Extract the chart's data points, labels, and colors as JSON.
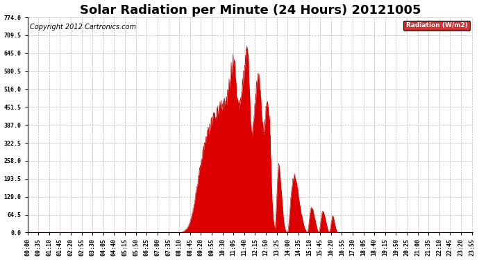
{
  "title": "Solar Radiation per Minute (24 Hours) 20121005",
  "copyright_text": "Copyright 2012 Cartronics.com",
  "legend_label": "Radiation (W/m2)",
  "legend_bg": "#cc0000",
  "legend_text_color": "#ffffff",
  "ylim": [
    0.0,
    774.0
  ],
  "yticks": [
    0.0,
    64.5,
    129.0,
    193.5,
    258.0,
    322.5,
    387.0,
    451.5,
    516.0,
    580.5,
    645.0,
    709.5,
    774.0
  ],
  "fill_color": "#dd0000",
  "line_color": "#cc0000",
  "background_color": "#ffffff",
  "grid_color": "#b0b0b0",
  "hline_color": "#ff3333",
  "title_fontsize": 13,
  "copyright_fontsize": 7,
  "tick_label_fontsize": 6,
  "control_points": [
    [
      0,
      0
    ],
    [
      499,
      0
    ],
    [
      500,
      2
    ],
    [
      505,
      5
    ],
    [
      510,
      10
    ],
    [
      515,
      15
    ],
    [
      520,
      25
    ],
    [
      525,
      40
    ],
    [
      530,
      60
    ],
    [
      535,
      85
    ],
    [
      540,
      115
    ],
    [
      545,
      150
    ],
    [
      550,
      185
    ],
    [
      555,
      220
    ],
    [
      560,
      255
    ],
    [
      565,
      285
    ],
    [
      570,
      310
    ],
    [
      575,
      335
    ],
    [
      580,
      355
    ],
    [
      585,
      375
    ],
    [
      590,
      390
    ],
    [
      595,
      405
    ],
    [
      600,
      415
    ],
    [
      605,
      425
    ],
    [
      610,
      435
    ],
    [
      615,
      445
    ],
    [
      620,
      455
    ],
    [
      625,
      462
    ],
    [
      630,
      468
    ],
    [
      635,
      475
    ],
    [
      640,
      482
    ],
    [
      645,
      490
    ],
    [
      648,
      510
    ],
    [
      650,
      530
    ],
    [
      652,
      545
    ],
    [
      654,
      560
    ],
    [
      656,
      575
    ],
    [
      658,
      590
    ],
    [
      660,
      605
    ],
    [
      662,
      618
    ],
    [
      664,
      625
    ],
    [
      666,
      620
    ],
    [
      668,
      610
    ],
    [
      670,
      595
    ],
    [
      672,
      560
    ],
    [
      674,
      510
    ],
    [
      676,
      490
    ],
    [
      678,
      470
    ],
    [
      680,
      460
    ],
    [
      682,
      450
    ],
    [
      684,
      460
    ],
    [
      686,
      475
    ],
    [
      688,
      490
    ],
    [
      690,
      505
    ],
    [
      692,
      520
    ],
    [
      694,
      535
    ],
    [
      696,
      550
    ],
    [
      698,
      565
    ],
    [
      700,
      580
    ],
    [
      702,
      600
    ],
    [
      704,
      620
    ],
    [
      706,
      640
    ],
    [
      708,
      655
    ],
    [
      710,
      665
    ],
    [
      712,
      650
    ],
    [
      714,
      600
    ],
    [
      716,
      540
    ],
    [
      718,
      480
    ],
    [
      720,
      420
    ],
    [
      722,
      380
    ],
    [
      724,
      360
    ],
    [
      726,
      340
    ],
    [
      728,
      370
    ],
    [
      730,
      400
    ],
    [
      732,
      430
    ],
    [
      734,
      460
    ],
    [
      736,
      490
    ],
    [
      738,
      515
    ],
    [
      740,
      535
    ],
    [
      742,
      550
    ],
    [
      744,
      560
    ],
    [
      746,
      565
    ],
    [
      748,
      560
    ],
    [
      750,
      540
    ],
    [
      752,
      510
    ],
    [
      754,
      480
    ],
    [
      756,
      450
    ],
    [
      758,
      420
    ],
    [
      760,
      390
    ],
    [
      762,
      360
    ],
    [
      764,
      380
    ],
    [
      766,
      400
    ],
    [
      768,
      420
    ],
    [
      770,
      440
    ],
    [
      772,
      455
    ],
    [
      774,
      465
    ],
    [
      776,
      470
    ],
    [
      778,
      450
    ],
    [
      780,
      430
    ],
    [
      782,
      400
    ],
    [
      784,
      340
    ],
    [
      786,
      260
    ],
    [
      788,
      180
    ],
    [
      790,
      120
    ],
    [
      792,
      80
    ],
    [
      794,
      50
    ],
    [
      796,
      30
    ],
    [
      798,
      20
    ],
    [
      800,
      10
    ],
    [
      802,
      50
    ],
    [
      804,
      100
    ],
    [
      806,
      150
    ],
    [
      808,
      200
    ],
    [
      810,
      230
    ],
    [
      812,
      250
    ],
    [
      814,
      240
    ],
    [
      816,
      210
    ],
    [
      818,
      180
    ],
    [
      820,
      150
    ],
    [
      822,
      120
    ],
    [
      824,
      90
    ],
    [
      826,
      60
    ],
    [
      828,
      40
    ],
    [
      830,
      25
    ],
    [
      832,
      15
    ],
    [
      834,
      8
    ],
    [
      836,
      2
    ],
    [
      838,
      0
    ],
    [
      840,
      0
    ],
    [
      842,
      10
    ],
    [
      844,
      30
    ],
    [
      846,
      60
    ],
    [
      848,
      90
    ],
    [
      850,
      120
    ],
    [
      852,
      150
    ],
    [
      854,
      170
    ],
    [
      856,
      185
    ],
    [
      858,
      195
    ],
    [
      860,
      200
    ],
    [
      862,
      205
    ],
    [
      864,
      200
    ],
    [
      866,
      195
    ],
    [
      868,
      185
    ],
    [
      870,
      175
    ],
    [
      872,
      160
    ],
    [
      874,
      145
    ],
    [
      876,
      130
    ],
    [
      878,
      115
    ],
    [
      880,
      100
    ],
    [
      882,
      85
    ],
    [
      884,
      70
    ],
    [
      886,
      60
    ],
    [
      888,
      50
    ],
    [
      890,
      40
    ],
    [
      892,
      30
    ],
    [
      894,
      20
    ],
    [
      896,
      15
    ],
    [
      898,
      10
    ],
    [
      900,
      5
    ],
    [
      902,
      2
    ],
    [
      904,
      0
    ],
    [
      906,
      10
    ],
    [
      908,
      25
    ],
    [
      910,
      45
    ],
    [
      912,
      65
    ],
    [
      914,
      80
    ],
    [
      916,
      90
    ],
    [
      918,
      95
    ],
    [
      920,
      90
    ],
    [
      922,
      80
    ],
    [
      924,
      70
    ],
    [
      926,
      60
    ],
    [
      928,
      50
    ],
    [
      930,
      40
    ],
    [
      932,
      30
    ],
    [
      934,
      20
    ],
    [
      936,
      10
    ],
    [
      938,
      5
    ],
    [
      940,
      0
    ],
    [
      942,
      5
    ],
    [
      944,
      15
    ],
    [
      946,
      30
    ],
    [
      948,
      50
    ],
    [
      950,
      65
    ],
    [
      952,
      75
    ],
    [
      954,
      80
    ],
    [
      956,
      78
    ],
    [
      958,
      70
    ],
    [
      960,
      60
    ],
    [
      962,
      50
    ],
    [
      964,
      40
    ],
    [
      966,
      30
    ],
    [
      968,
      20
    ],
    [
      970,
      10
    ],
    [
      972,
      5
    ],
    [
      974,
      0
    ],
    [
      976,
      5
    ],
    [
      978,
      15
    ],
    [
      980,
      30
    ],
    [
      982,
      45
    ],
    [
      984,
      55
    ],
    [
      986,
      60
    ],
    [
      988,
      55
    ],
    [
      990,
      45
    ],
    [
      992,
      35
    ],
    [
      994,
      25
    ],
    [
      996,
      15
    ],
    [
      998,
      8
    ],
    [
      1000,
      3
    ],
    [
      1002,
      0
    ],
    [
      1439,
      0
    ]
  ]
}
